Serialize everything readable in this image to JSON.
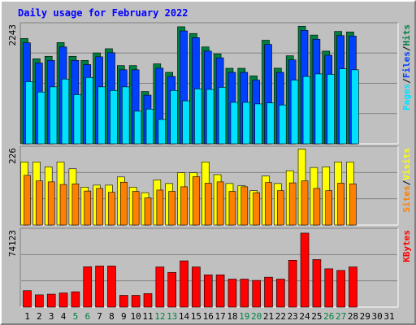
{
  "title": "Daily usage for February 2022",
  "colors": {
    "hits": "#008040",
    "files": "#0040ff",
    "pages": "#00e0ff",
    "visits": "#ffff00",
    "sites": "#ff8000",
    "kbytes": "#ff0000",
    "weekend_day": "#008040",
    "weekday": "#000000",
    "grid": "#808080"
  },
  "chart_data": [
    {
      "type": "bar",
      "panel": "top",
      "ymax_label": "2243",
      "ylim": [
        0,
        2243
      ],
      "side_labels": [
        "Pages",
        "/",
        "Files",
        "/",
        "Hits"
      ],
      "categories": [
        "1",
        "2",
        "3",
        "4",
        "5",
        "6",
        "7",
        "8",
        "9",
        "10",
        "11",
        "12",
        "13",
        "14",
        "15",
        "16",
        "17",
        "18",
        "19",
        "20",
        "21",
        "22",
        "23",
        "24",
        "25",
        "26",
        "27",
        "28",
        "29",
        "30",
        "31"
      ],
      "series": [
        {
          "name": "Hits",
          "values": [
            2033,
            1642,
            1690,
            1955,
            1690,
            1609,
            1755,
            1836,
            1511,
            1511,
            1011,
            1544,
            1380,
            2260,
            2130,
            1870,
            1736,
            1458,
            1458,
            1311,
            2000,
            1460,
            1700,
            2270,
            2100,
            1790,
            2170,
            2160,
            null,
            null,
            null
          ]
        },
        {
          "name": "Files",
          "values": [
            1950,
            1560,
            1610,
            1870,
            1610,
            1530,
            1680,
            1760,
            1430,
            1430,
            940,
            1460,
            1300,
            2180,
            2050,
            1790,
            1660,
            1380,
            1380,
            1230,
            1920,
            1380,
            1620,
            2190,
            2020,
            1710,
            2090,
            2080,
            null,
            null,
            null
          ]
        },
        {
          "name": "Pages",
          "values": [
            1200,
            1000,
            1100,
            1250,
            950,
            1280,
            1100,
            1030,
            1100,
            630,
            670,
            470,
            1030,
            830,
            1060,
            1050,
            1090,
            800,
            800,
            770,
            790,
            750,
            1230,
            1300,
            1350,
            1340,
            1450,
            1430,
            null,
            null,
            null
          ]
        }
      ]
    },
    {
      "type": "bar",
      "panel": "middle",
      "ymax_label": "226",
      "ylim": [
        0,
        226
      ],
      "side_labels": [
        "Sites",
        "/",
        "Visits"
      ],
      "categories": [
        "1",
        "2",
        "3",
        "4",
        "5",
        "6",
        "7",
        "8",
        "9",
        "10",
        "11",
        "12",
        "13",
        "14",
        "15",
        "16",
        "17",
        "18",
        "19",
        "20",
        "21",
        "22",
        "23",
        "24",
        "25",
        "26",
        "27",
        "28",
        "29",
        "30",
        "31"
      ],
      "series": [
        {
          "name": "Visits",
          "values": [
            193,
            193,
            178,
            193,
            172,
            116,
            122,
            122,
            147,
            116,
            99,
            138,
            127,
            160,
            160,
            193,
            154,
            127,
            120,
            105,
            150,
            127,
            166,
            232,
            176,
            178,
            193,
            193,
            null,
            null,
            null
          ]
        },
        {
          "name": "Sites",
          "values": [
            152,
            135,
            132,
            124,
            126,
            104,
            112,
            100,
            131,
            103,
            83,
            107,
            103,
            117,
            148,
            128,
            132,
            103,
            117,
            99,
            130,
            105,
            129,
            135,
            112,
            105,
            128,
            126,
            null,
            null,
            null
          ]
        }
      ]
    },
    {
      "type": "bar",
      "panel": "bottom",
      "ymax_label": "74123",
      "ylim": [
        0,
        74123
      ],
      "side_labels": [
        "KBytes"
      ],
      "categories": [
        "1",
        "2",
        "3",
        "4",
        "5",
        "6",
        "7",
        "8",
        "9",
        "10",
        "11",
        "12",
        "13",
        "14",
        "15",
        "16",
        "17",
        "18",
        "19",
        "20",
        "21",
        "22",
        "23",
        "24",
        "25",
        "26",
        "27",
        "28",
        "29",
        "30",
        "31"
      ],
      "series": [
        {
          "name": "KBytes",
          "values": [
            16500,
            12300,
            13000,
            14200,
            15400,
            40500,
            41200,
            41200,
            11800,
            11800,
            13600,
            40300,
            34800,
            46400,
            40300,
            32400,
            32400,
            28100,
            28100,
            26800,
            30000,
            28100,
            47000,
            74200,
            47700,
            38400,
            36800,
            40300,
            null,
            null,
            null
          ]
        }
      ]
    }
  ],
  "weekend_days": [
    5,
    6,
    12,
    13,
    19,
    20,
    26,
    27
  ]
}
